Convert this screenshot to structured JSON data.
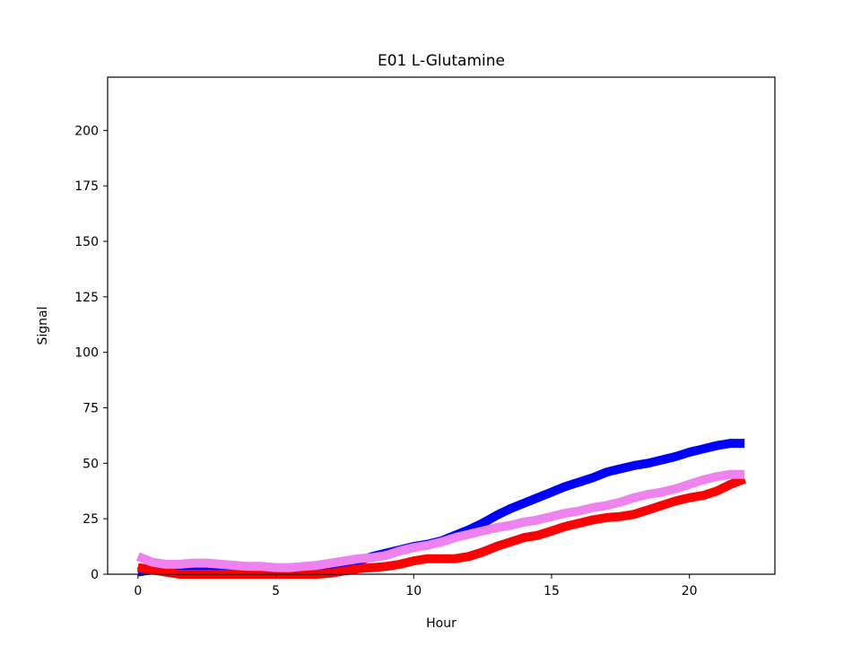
{
  "chart_data": {
    "type": "line",
    "title": "E01 L-Glutamine",
    "xlabel": "Hour",
    "ylabel": "Signal",
    "xlim": [
      -1.1,
      23.1
    ],
    "ylim": [
      0,
      224
    ],
    "xticks": [
      0,
      5,
      10,
      15,
      20
    ],
    "yticks": [
      0,
      25,
      50,
      75,
      100,
      125,
      150,
      175,
      200
    ],
    "grid": false,
    "legend": "none",
    "series": [
      {
        "color": "#0000ff",
        "x": [
          0,
          0.5,
          1,
          1.5,
          2,
          2.5,
          3,
          3.5,
          4,
          4.5,
          5,
          5.5,
          6,
          6.5,
          7,
          7.5,
          8,
          8.5,
          9,
          9.5,
          10,
          10.5,
          11,
          11.5,
          12,
          12.5,
          13,
          13.5,
          14,
          14.5,
          15,
          15.5,
          16,
          16.5,
          17,
          17.5,
          18,
          18.5,
          19,
          19.5,
          20,
          20.5,
          21,
          21.5,
          22
        ],
        "y": [
          1,
          2,
          1.5,
          1.5,
          1.5,
          2,
          1.5,
          1,
          1,
          0.5,
          0.5,
          0.5,
          1,
          1.5,
          2.5,
          4,
          6,
          8,
          9.5,
          11,
          12.5,
          13.5,
          15,
          17.5,
          20,
          23,
          26.5,
          29.5,
          32,
          34.5,
          37,
          39.5,
          41.5,
          43.5,
          46,
          47.5,
          49,
          50,
          51.5,
          53,
          55,
          56.5,
          58,
          59,
          59
        ]
      },
      {
        "color": "#ff0000",
        "x": [
          0,
          0.5,
          1,
          1.5,
          2,
          2.5,
          3,
          3.5,
          4,
          4.5,
          5,
          5.5,
          6,
          6.5,
          7,
          7.5,
          8,
          8.5,
          9,
          9.5,
          10,
          10.5,
          11,
          11.5,
          12,
          12.5,
          13,
          13.5,
          14,
          14.5,
          15,
          15.5,
          16,
          16.5,
          17,
          17.5,
          18,
          18.5,
          19,
          19.5,
          20,
          20.5,
          21,
          21.5,
          22
        ],
        "y": [
          3,
          2,
          1,
          0,
          0,
          0,
          0,
          0,
          0,
          0,
          0,
          0,
          0,
          0,
          0.5,
          1.5,
          2.5,
          3,
          3.5,
          4.5,
          6,
          7,
          7,
          7,
          8,
          10,
          12.5,
          14.5,
          16.5,
          17.5,
          19.5,
          21.5,
          23,
          24.5,
          25.5,
          26,
          27,
          29,
          31,
          33,
          34.5,
          35.5,
          37.5,
          40.5,
          43
        ]
      },
      {
        "color": "#ee82ee",
        "x": [
          0,
          0.5,
          1,
          1.5,
          2,
          2.5,
          3,
          3.5,
          4,
          4.5,
          5,
          5.5,
          6,
          6.5,
          7,
          7.5,
          8,
          8.5,
          9,
          9.5,
          10,
          10.5,
          11,
          11.5,
          12,
          12.5,
          13,
          13.5,
          14,
          14.5,
          15,
          15.5,
          16,
          16.5,
          17,
          17.5,
          18,
          18.5,
          19,
          19.5,
          20,
          20.5,
          21,
          21.5,
          22
        ],
        "y": [
          8,
          5.5,
          4.5,
          4.5,
          5,
          5,
          4.5,
          4,
          3.5,
          3.5,
          3,
          3,
          3.5,
          4,
          5,
          6,
          7,
          7.5,
          8.5,
          10.5,
          12,
          13,
          14.5,
          16.5,
          18,
          19.5,
          21,
          22,
          23.5,
          24.5,
          26,
          27.5,
          28.5,
          30,
          31,
          32.5,
          34.5,
          36,
          37,
          38.5,
          40.5,
          42.5,
          44,
          45,
          45
        ]
      }
    ]
  }
}
